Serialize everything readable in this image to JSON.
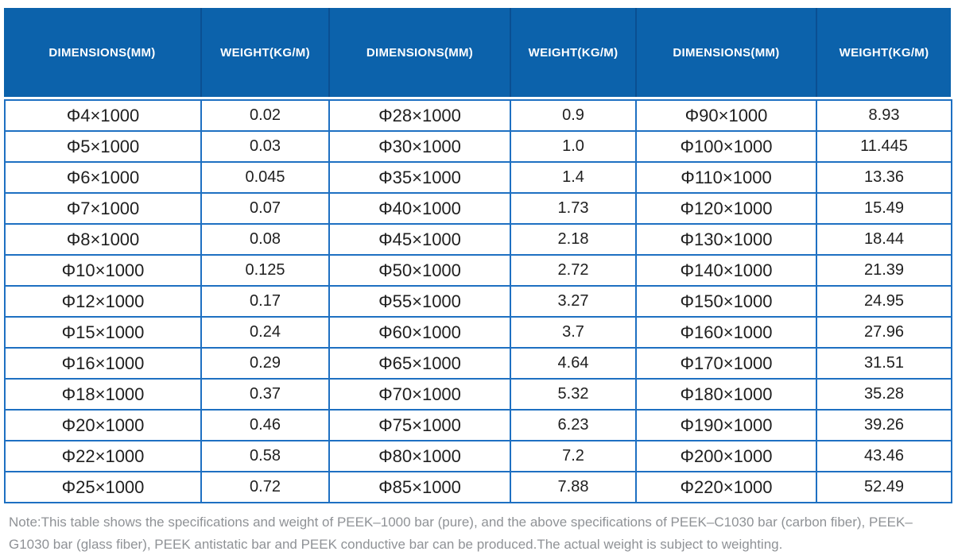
{
  "colors": {
    "header_bg": "#0c62ab",
    "header_divider": "#0a4f92",
    "header_text": "#ffffff",
    "grid_border": "#1e70c2",
    "cell_text": "#1f1f1f",
    "note_text": "#8f9296",
    "page_bg": "#ffffff"
  },
  "table": {
    "headers": [
      "DIMENSIONS(MM)",
      "WEIGHT(KG/M)",
      "DIMENSIONS(MM)",
      "WEIGHT(KG/M)",
      "DIMENSIONS(MM)",
      "WEIGHT(KG/M)"
    ],
    "rows": [
      [
        "Φ4×1000",
        "0.02",
        "Φ28×1000",
        "0.9",
        "Φ90×1000",
        "8.93"
      ],
      [
        "Φ5×1000",
        "0.03",
        "Φ30×1000",
        "1.0",
        "Φ100×1000",
        "11.445"
      ],
      [
        "Φ6×1000",
        "0.045",
        "Φ35×1000",
        "1.4",
        "Φ110×1000",
        "13.36"
      ],
      [
        "Φ7×1000",
        "0.07",
        "Φ40×1000",
        "1.73",
        "Φ120×1000",
        "15.49"
      ],
      [
        "Φ8×1000",
        "0.08",
        "Φ45×1000",
        "2.18",
        "Φ130×1000",
        "18.44"
      ],
      [
        "Φ10×1000",
        "0.125",
        "Φ50×1000",
        "2.72",
        "Φ140×1000",
        "21.39"
      ],
      [
        "Φ12×1000",
        "0.17",
        "Φ55×1000",
        "3.27",
        "Φ150×1000",
        "24.95"
      ],
      [
        "Φ15×1000",
        "0.24",
        "Φ60×1000",
        "3.7",
        "Φ160×1000",
        "27.96"
      ],
      [
        "Φ16×1000",
        "0.29",
        "Φ65×1000",
        "4.64",
        "Φ170×1000",
        "31.51"
      ],
      [
        "Φ18×1000",
        "0.37",
        "Φ70×1000",
        "5.32",
        "Φ180×1000",
        "35.28"
      ],
      [
        "Φ20×1000",
        "0.46",
        "Φ75×1000",
        "6.23",
        "Φ190×1000",
        "39.26"
      ],
      [
        "Φ22×1000",
        "0.58",
        "Φ80×1000",
        "7.2",
        "Φ200×1000",
        "43.46"
      ],
      [
        "Φ25×1000",
        "0.72",
        "Φ85×1000",
        "7.88",
        "Φ220×1000",
        "52.49"
      ]
    ]
  },
  "note": "Note:This table shows the specifications and weight of PEEK–1000 bar (pure), and the above specifications of PEEK–C1030 bar (carbon fiber), PEEK–G1030 bar (glass fiber), PEEK antistatic bar and PEEK conductive bar can be produced.The actual weight is subject to weighting."
}
